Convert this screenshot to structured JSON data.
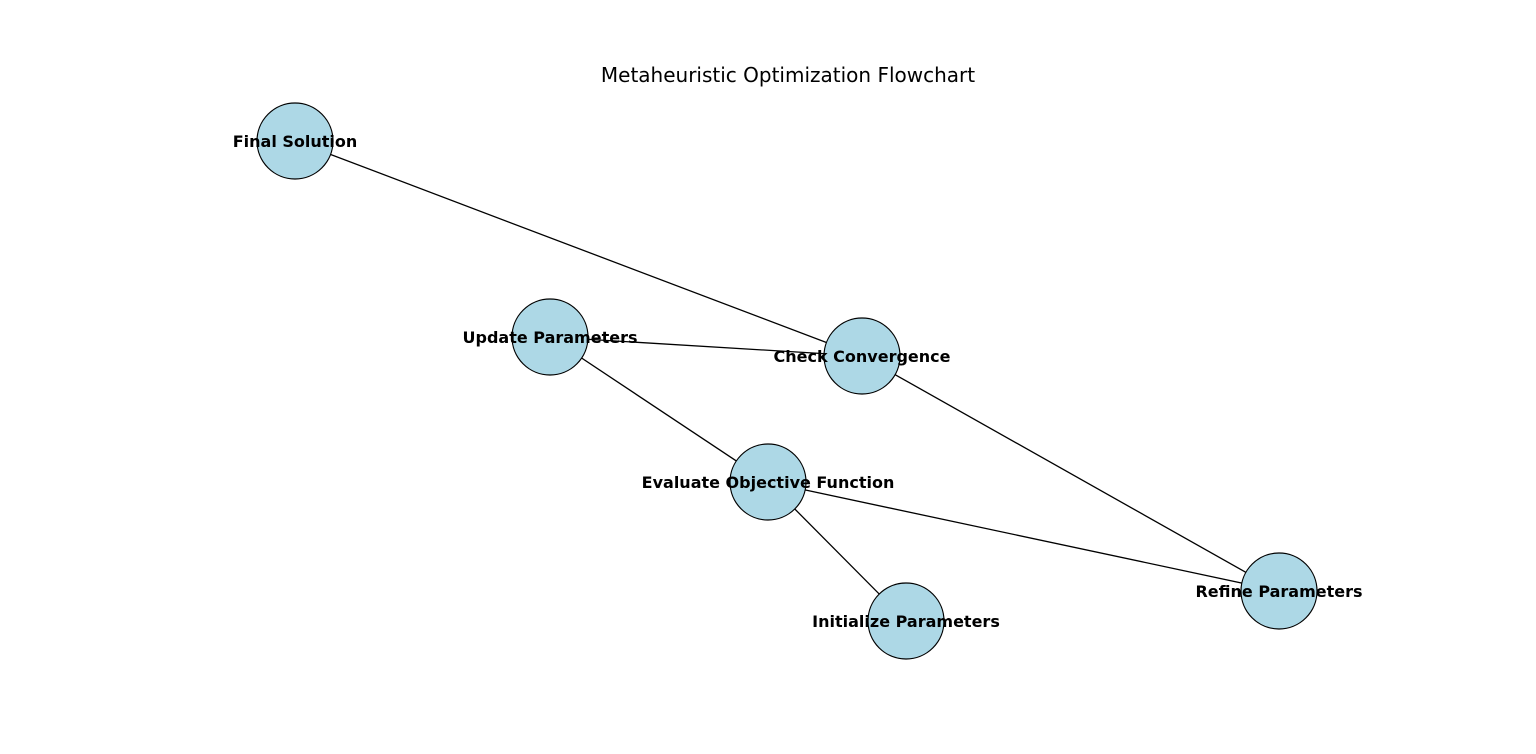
{
  "diagram": {
    "title": "Metaheuristic Optimization Flowchart",
    "node_fill": "#add8e6",
    "node_stroke": "#000000",
    "edge_color": "#000000",
    "nodes": [
      {
        "id": "final-solution",
        "label": "Final Solution"
      },
      {
        "id": "update-parameters",
        "label": "Update Parameters"
      },
      {
        "id": "check-convergence",
        "label": "Check Convergence"
      },
      {
        "id": "evaluate-objective-function",
        "label": "Evaluate Objective Function"
      },
      {
        "id": "initialize-parameters",
        "label": "Initialize Parameters"
      },
      {
        "id": "refine-parameters",
        "label": "Refine Parameters"
      }
    ],
    "edges": [
      {
        "from": "final-solution",
        "to": "check-convergence"
      },
      {
        "from": "update-parameters",
        "to": "check-convergence"
      },
      {
        "from": "update-parameters",
        "to": "evaluate-objective-function"
      },
      {
        "from": "check-convergence",
        "to": "refine-parameters"
      },
      {
        "from": "evaluate-objective-function",
        "to": "refine-parameters"
      },
      {
        "from": "evaluate-objective-function",
        "to": "initialize-parameters"
      }
    ]
  }
}
